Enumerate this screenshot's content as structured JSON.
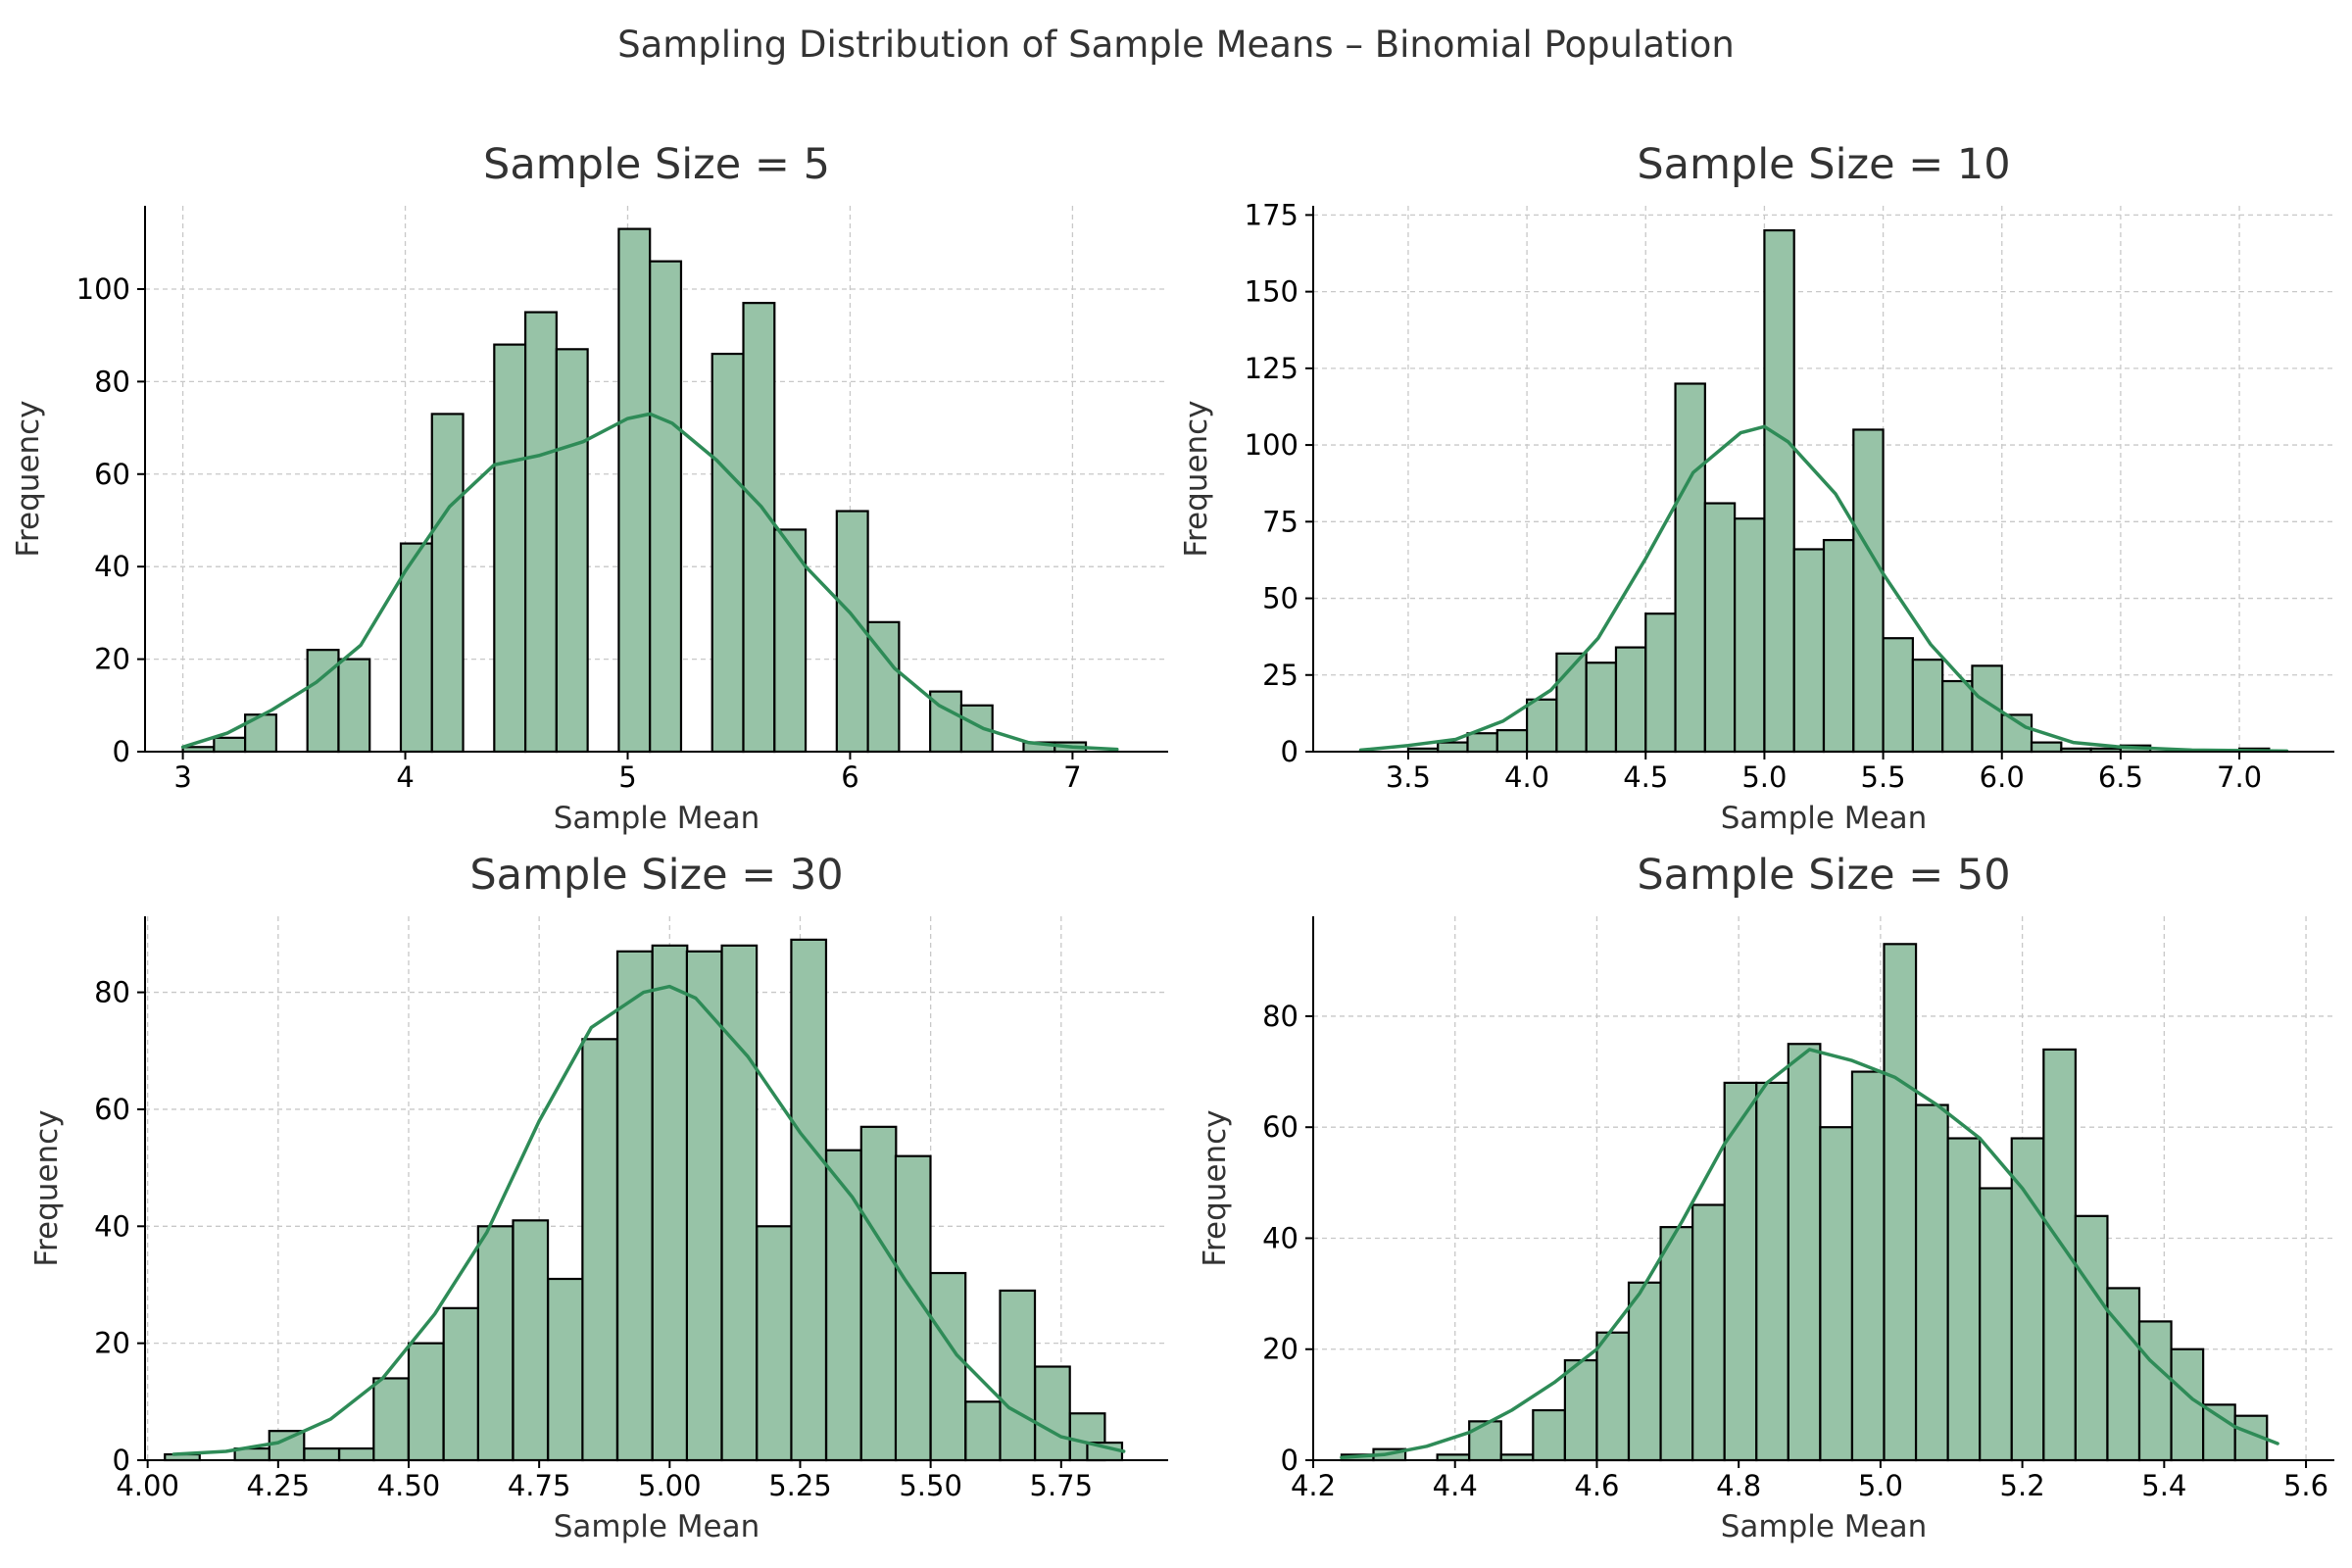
{
  "figure_title": "Sampling Distribution of Sample Means – Binomial Population",
  "colors": {
    "bar_fill": "#97c3a7",
    "bar_edge": "#000000",
    "kde_line": "#2e8b57",
    "grid": "#c8c8c8",
    "axis": "#000000",
    "text": "#333333"
  },
  "chart_data": [
    {
      "type": "bar",
      "subtype": "histogram_with_kde",
      "title": "Sample Size = 5",
      "xlabel": "Sample Mean",
      "ylabel": "Frequency",
      "xlim": [
        2.83,
        7.43
      ],
      "ylim": [
        0,
        118
      ],
      "xticks": [
        3,
        4,
        5,
        6,
        7
      ],
      "xtick_labels": [
        "3",
        "4",
        "5",
        "6",
        "7"
      ],
      "yticks": [
        0,
        20,
        40,
        60,
        80,
        100
      ],
      "ytick_labels": [
        "0",
        "20",
        "40",
        "60",
        "80",
        "100"
      ],
      "bins": {
        "left": [
          3.0,
          3.14,
          3.28,
          3.42,
          3.56,
          3.7,
          3.84,
          3.98,
          4.12,
          4.26,
          4.4,
          4.54,
          4.68,
          4.82,
          4.96,
          5.1,
          5.24,
          5.38,
          5.52,
          5.66,
          5.8,
          5.94,
          6.08,
          6.22,
          6.36,
          6.5,
          6.64,
          6.78,
          6.92
        ],
        "width": 0.14,
        "counts": [
          1,
          3,
          8,
          0,
          22,
          20,
          0,
          45,
          73,
          0,
          88,
          95,
          87,
          0,
          113,
          106,
          0,
          86,
          97,
          48,
          0,
          52,
          28,
          0,
          13,
          10,
          0,
          2,
          2
        ]
      },
      "kde": {
        "x": [
          3.0,
          3.2,
          3.4,
          3.6,
          3.8,
          4.0,
          4.2,
          4.4,
          4.6,
          4.8,
          5.0,
          5.1,
          5.2,
          5.4,
          5.6,
          5.8,
          6.0,
          6.2,
          6.4,
          6.6,
          6.8,
          7.0,
          7.2
        ],
        "y": [
          1,
          4,
          9,
          15,
          23,
          39,
          53,
          62,
          64,
          67,
          72,
          73,
          71,
          63,
          53,
          40,
          30,
          18,
          10,
          5,
          2,
          1,
          0.5
        ]
      }
    },
    {
      "type": "bar",
      "subtype": "histogram_with_kde",
      "title": "Sample Size = 10",
      "xlabel": "Sample Mean",
      "ylabel": "Frequency",
      "xlim": [
        3.1,
        7.4
      ],
      "ylim": [
        0,
        178
      ],
      "xticks": [
        3.5,
        4.0,
        4.5,
        5.0,
        5.5,
        6.0,
        6.5,
        7.0
      ],
      "xtick_labels": [
        "3.5",
        "4.0",
        "4.5",
        "5.0",
        "5.5",
        "6.0",
        "6.5",
        "7.0"
      ],
      "yticks": [
        0,
        25,
        50,
        75,
        100,
        125,
        150,
        175
      ],
      "ytick_labels": [
        "0",
        "25",
        "50",
        "75",
        "100",
        "125",
        "150",
        "175"
      ],
      "bins": {
        "left": [
          3.5,
          3.625,
          3.75,
          3.875,
          4.0,
          4.125,
          4.25,
          4.375,
          4.5,
          4.625,
          4.75,
          4.875,
          5.0,
          5.125,
          5.25,
          5.375,
          5.5,
          5.625,
          5.75,
          5.875,
          6.0,
          6.125,
          6.25,
          6.375,
          6.5,
          6.625,
          6.75,
          6.875,
          7.0
        ],
        "width": 0.125,
        "counts": [
          1,
          3,
          6,
          7,
          17,
          32,
          29,
          34,
          45,
          120,
          81,
          76,
          170,
          66,
          69,
          105,
          37,
          30,
          23,
          28,
          12,
          3,
          1,
          1,
          2,
          0,
          0,
          0,
          1
        ]
      },
      "kde": {
        "x": [
          3.3,
          3.5,
          3.7,
          3.9,
          4.1,
          4.3,
          4.5,
          4.7,
          4.9,
          5.0,
          5.1,
          5.3,
          5.5,
          5.7,
          5.9,
          6.1,
          6.3,
          6.5,
          6.8,
          7.2
        ],
        "y": [
          0.5,
          2,
          4,
          10,
          20,
          37,
          63,
          91,
          104,
          106,
          101,
          84,
          58,
          35,
          18,
          8,
          3,
          1.5,
          0.5,
          0.2
        ]
      }
    },
    {
      "type": "bar",
      "subtype": "histogram_with_kde",
      "title": "Sample Size = 30",
      "xlabel": "Sample Mean",
      "ylabel": "Frequency",
      "xlim": [
        3.995,
        5.955
      ],
      "ylim": [
        0,
        93
      ],
      "xticks": [
        4.0,
        4.25,
        4.5,
        4.75,
        5.0,
        5.25,
        5.5,
        5.75
      ],
      "xtick_labels": [
        "4.00",
        "4.25",
        "4.50",
        "4.75",
        "5.00",
        "5.25",
        "5.50",
        "5.75"
      ],
      "yticks": [
        0,
        20,
        40,
        60,
        80
      ],
      "ytick_labels": [
        "0",
        "20",
        "40",
        "60",
        "80"
      ],
      "bins": {
        "left": [
          4.033,
          4.1,
          4.167,
          4.233,
          4.3,
          4.367,
          4.433,
          4.5,
          4.567,
          4.633,
          4.7,
          4.767,
          4.833,
          4.9,
          4.967,
          5.033,
          5.1,
          5.167,
          5.233,
          5.3,
          5.367,
          5.433,
          5.5,
          5.567,
          5.633,
          5.7,
          5.767,
          5.8
        ],
        "width": 0.0667,
        "counts": [
          1,
          0,
          2,
          5,
          2,
          2,
          14,
          20,
          26,
          40,
          41,
          31,
          72,
          87,
          88,
          87,
          88,
          40,
          89,
          53,
          57,
          52,
          32,
          10,
          29,
          16,
          8,
          3
        ]
      },
      "kde": {
        "x": [
          4.05,
          4.15,
          4.25,
          4.35,
          4.45,
          4.55,
          4.65,
          4.75,
          4.85,
          4.95,
          5.0,
          5.05,
          5.15,
          5.25,
          5.35,
          5.45,
          5.55,
          5.65,
          5.75,
          5.87
        ],
        "y": [
          1,
          1.5,
          3,
          7,
          14,
          25,
          39,
          58,
          74,
          80,
          81,
          79,
          69,
          56,
          45,
          31,
          18,
          9,
          4,
          1.5
        ]
      }
    },
    {
      "type": "bar",
      "subtype": "histogram_with_kde",
      "title": "Sample Size = 50",
      "xlabel": "Sample Mean",
      "ylabel": "Frequency",
      "xlim": [
        4.2,
        5.64
      ],
      "ylim": [
        0,
        98
      ],
      "xticks": [
        4.2,
        4.4,
        4.6,
        4.8,
        5.0,
        5.2,
        5.4,
        5.6
      ],
      "xtick_labels": [
        "4.2",
        "4.4",
        "4.6",
        "4.8",
        "5.0",
        "5.2",
        "5.4",
        "5.6"
      ],
      "yticks": [
        0,
        20,
        40,
        60,
        80
      ],
      "ytick_labels": [
        "0",
        "20",
        "40",
        "60",
        "80"
      ],
      "bins": {
        "left": [
          4.24,
          4.285,
          4.33,
          4.375,
          4.42,
          4.465,
          4.51,
          4.555,
          4.6,
          4.645,
          4.69,
          4.735,
          4.78,
          4.825,
          4.87,
          4.915,
          4.96,
          5.005,
          5.05,
          5.095,
          5.14,
          5.185,
          5.23,
          5.275,
          5.32,
          5.365,
          5.41,
          5.455,
          5.5
        ],
        "width": 0.045,
        "counts": [
          1,
          2,
          0,
          1,
          7,
          1,
          9,
          18,
          23,
          32,
          42,
          46,
          68,
          68,
          75,
          60,
          70,
          93,
          64,
          58,
          49,
          58,
          74,
          44,
          31,
          25,
          20,
          10,
          8
        ]
      },
      "kde": {
        "x": [
          4.24,
          4.3,
          4.36,
          4.42,
          4.48,
          4.54,
          4.6,
          4.66,
          4.72,
          4.78,
          4.84,
          4.9,
          4.96,
          5.02,
          5.08,
          5.14,
          5.2,
          5.26,
          5.32,
          5.38,
          5.44,
          5.5,
          5.56
        ],
        "y": [
          0.5,
          1,
          2.5,
          5,
          9,
          14,
          20,
          30,
          43,
          57,
          68,
          74,
          72,
          69,
          64,
          58,
          49,
          38,
          27,
          18,
          11,
          6,
          3
        ]
      }
    }
  ]
}
